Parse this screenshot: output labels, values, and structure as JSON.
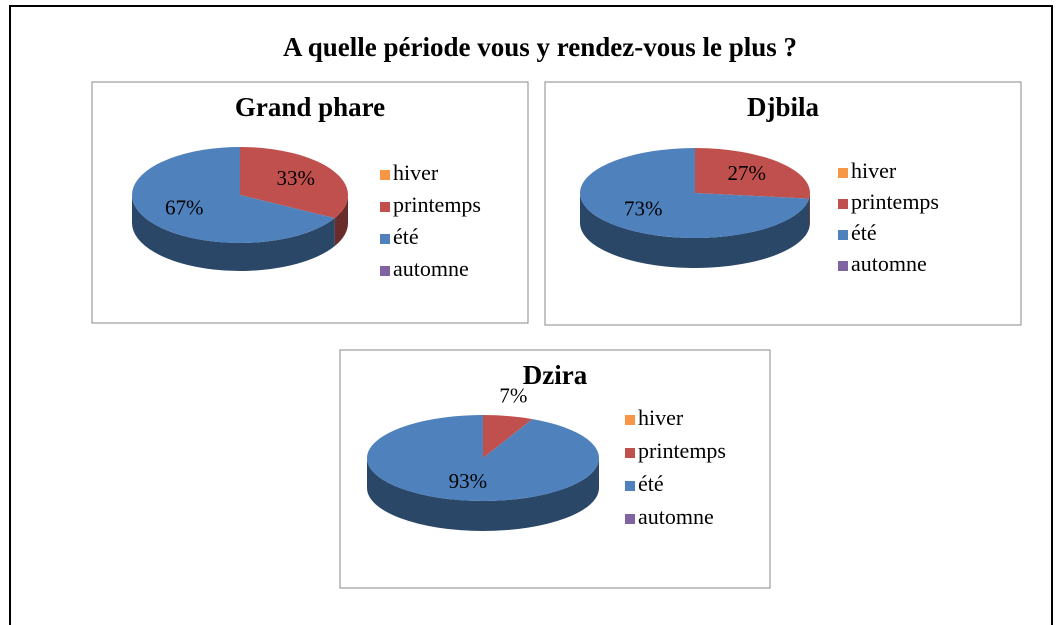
{
  "title": "A quelle période vous y rendez-vous le plus ?",
  "chart_data": [
    {
      "type": "pie",
      "title": "Grand phare",
      "categories": [
        "hiver",
        "printemps",
        "été",
        "automne"
      ],
      "values": [
        0,
        33,
        67,
        0
      ],
      "value_labels": [
        null,
        "33%",
        "67%",
        null
      ],
      "colors": [
        "#f79646",
        "#c0504d",
        "#4f81bd",
        "#8064a2"
      ],
      "legend": "right"
    },
    {
      "type": "pie",
      "title": "Djbila",
      "categories": [
        "hiver",
        "printemps",
        "été",
        "automne"
      ],
      "values": [
        0,
        27,
        73,
        0
      ],
      "value_labels": [
        null,
        "27%",
        "73%",
        null
      ],
      "colors": [
        "#f79646",
        "#c0504d",
        "#4f81bd",
        "#8064a2"
      ],
      "legend": "right"
    },
    {
      "type": "pie",
      "title": "Dzira",
      "categories": [
        "hiver",
        "printemps",
        "été",
        "automne"
      ],
      "values": [
        0,
        7,
        93,
        0
      ],
      "value_labels": [
        null,
        "7%",
        "93%",
        null
      ],
      "colors": [
        "#f79646",
        "#c0504d",
        "#4f81bd",
        "#8064a2"
      ],
      "legend": "right"
    }
  ]
}
